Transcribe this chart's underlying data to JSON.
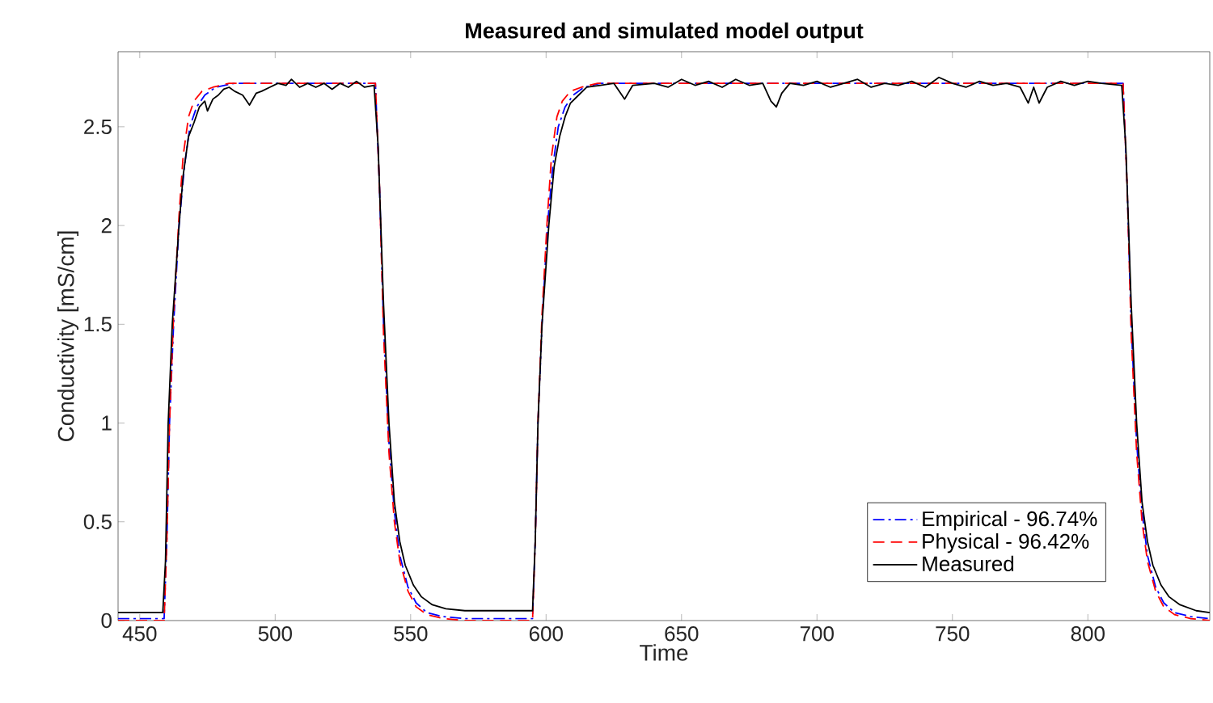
{
  "chart_data": {
    "type": "line",
    "title": "Measured and simulated model output",
    "xlabel": "Time",
    "ylabel": "Conductivity [mS/cm]",
    "xlim": [
      442,
      845
    ],
    "ylim": [
      0,
      2.88
    ],
    "xticks": [
      450,
      500,
      550,
      600,
      650,
      700,
      750,
      800
    ],
    "yticks": [
      0,
      0.5,
      1,
      1.5,
      2,
      2.5
    ],
    "legend": "bottom right",
    "grid": false,
    "series": [
      {
        "name": "Empirical - 96.74%",
        "color": "#0000ff",
        "line_style": "dashdot",
        "x": [
          442,
          459,
          460,
          461,
          462.5,
          464.5,
          466.5,
          468.5,
          471,
          474,
          478,
          485,
          537,
          538.5,
          540,
          542,
          544,
          546,
          549,
          552,
          556,
          562,
          570,
          595,
          596,
          597,
          598.5,
          600.5,
          602.5,
          604.5,
          607,
          610,
          614,
          620,
          813,
          814.5,
          816,
          818,
          820,
          822,
          825,
          828,
          832,
          838,
          845
        ],
        "values": [
          0.01,
          0.01,
          0.4,
          1.0,
          1.5,
          2.0,
          2.3,
          2.5,
          2.6,
          2.66,
          2.7,
          2.72,
          2.72,
          2.2,
          1.5,
          0.9,
          0.55,
          0.33,
          0.17,
          0.09,
          0.04,
          0.02,
          0.01,
          0.01,
          0.4,
          1.0,
          1.5,
          2.0,
          2.3,
          2.5,
          2.6,
          2.66,
          2.7,
          2.72,
          2.72,
          2.2,
          1.5,
          0.9,
          0.55,
          0.33,
          0.17,
          0.09,
          0.04,
          0.02,
          0.01
        ]
      },
      {
        "name": "Physical - 96.42%",
        "color": "#ff0000",
        "line_style": "dashed",
        "x": [
          442,
          459,
          460,
          461,
          462.5,
          464.5,
          466,
          468,
          470,
          473,
          477,
          483,
          537,
          538.5,
          540,
          542,
          544,
          546,
          549,
          552,
          556,
          562,
          570,
          595,
          596,
          597,
          598.5,
          600.5,
          602,
          604,
          606,
          609,
          613,
          619,
          813,
          814.5,
          816,
          818,
          820,
          822,
          825,
          828,
          832,
          838,
          845
        ],
        "values": [
          0.0,
          0.0,
          0.4,
          1.0,
          1.55,
          2.05,
          2.35,
          2.55,
          2.63,
          2.68,
          2.7,
          2.72,
          2.72,
          2.2,
          1.45,
          0.85,
          0.5,
          0.3,
          0.15,
          0.07,
          0.03,
          0.01,
          0.0,
          0.0,
          0.4,
          1.0,
          1.55,
          2.05,
          2.35,
          2.55,
          2.63,
          2.68,
          2.7,
          2.72,
          2.72,
          2.2,
          1.45,
          0.85,
          0.5,
          0.3,
          0.15,
          0.07,
          0.03,
          0.01,
          0.0
        ]
      },
      {
        "name": "Measured",
        "color": "#000000",
        "line_style": "solid",
        "x": [
          442,
          458.5,
          459.5,
          460.5,
          462,
          464.5,
          466,
          468,
          470,
          472,
          474,
          475,
          477,
          479,
          481,
          483,
          485,
          488,
          490.5,
          493,
          495,
          498,
          501,
          504,
          506,
          509,
          512,
          515,
          518,
          521,
          524,
          527,
          530,
          533,
          536.5,
          538,
          540,
          542,
          544,
          546,
          548,
          551,
          554,
          558,
          563,
          570,
          580,
          595,
          596,
          597,
          598.5,
          601,
          603,
          605,
          607,
          609,
          612,
          615,
          620,
          625,
          629,
          632,
          640,
          645,
          650,
          655,
          660,
          665,
          670,
          675,
          680,
          683,
          685,
          687,
          690,
          695,
          700,
          705,
          710,
          715,
          720,
          725,
          730,
          735,
          740,
          745,
          750,
          755,
          760,
          765,
          770,
          775,
          778,
          780,
          782,
          785,
          790,
          795,
          800,
          805,
          812.5,
          814,
          816,
          818,
          820,
          822,
          824,
          827,
          830,
          834,
          840,
          845
        ],
        "values": [
          0.04,
          0.04,
          0.3,
          1.0,
          1.5,
          2.0,
          2.25,
          2.45,
          2.52,
          2.6,
          2.63,
          2.58,
          2.64,
          2.66,
          2.69,
          2.7,
          2.68,
          2.66,
          2.61,
          2.67,
          2.68,
          2.7,
          2.72,
          2.71,
          2.74,
          2.7,
          2.72,
          2.7,
          2.72,
          2.69,
          2.72,
          2.7,
          2.73,
          2.7,
          2.71,
          2.4,
          1.6,
          1.0,
          0.6,
          0.4,
          0.28,
          0.18,
          0.12,
          0.08,
          0.06,
          0.05,
          0.05,
          0.05,
          0.4,
          1.0,
          1.5,
          2.0,
          2.3,
          2.45,
          2.55,
          2.62,
          2.66,
          2.7,
          2.71,
          2.72,
          2.64,
          2.71,
          2.72,
          2.7,
          2.74,
          2.71,
          2.73,
          2.7,
          2.74,
          2.71,
          2.72,
          2.63,
          2.6,
          2.67,
          2.72,
          2.71,
          2.73,
          2.7,
          2.72,
          2.74,
          2.7,
          2.72,
          2.71,
          2.73,
          2.7,
          2.75,
          2.72,
          2.7,
          2.73,
          2.71,
          2.72,
          2.7,
          2.62,
          2.7,
          2.62,
          2.7,
          2.73,
          2.71,
          2.73,
          2.72,
          2.71,
          2.4,
          1.6,
          1.0,
          0.6,
          0.4,
          0.28,
          0.18,
          0.12,
          0.08,
          0.05,
          0.04
        ]
      }
    ]
  }
}
